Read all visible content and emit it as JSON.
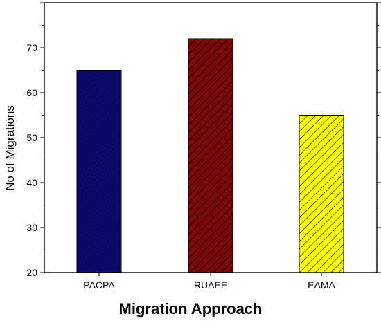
{
  "chart_data": {
    "type": "bar",
    "title": "",
    "xlabel": "Migration Approach",
    "ylabel": "No of Migrations",
    "categories": [
      "PACPA",
      "RUAEE",
      "EAMA"
    ],
    "values": [
      65,
      72,
      55
    ],
    "ylim": [
      20,
      80
    ],
    "yticks": [
      20,
      30,
      40,
      50,
      60,
      70
    ],
    "grid": false,
    "legend": "none",
    "colors": [
      "#0a0a6e",
      "#7a0a0a",
      "#ffff00"
    ],
    "hatch": [
      "dense-diagonal",
      "diagonal",
      "diagonal"
    ]
  }
}
